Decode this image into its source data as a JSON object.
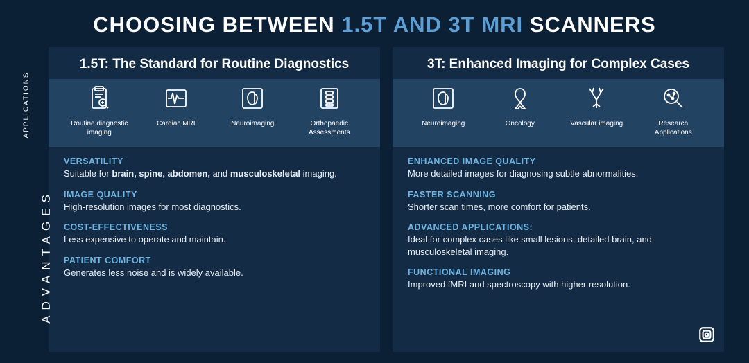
{
  "colors": {
    "background": "#0b1f35",
    "accent": "#5d9fd4",
    "adv_title": "#6fb3e0",
    "panel_bg": "rgba(45,80,120,0.25)",
    "apps_row_bg": "rgba(80,130,180,0.28)",
    "text": "#ffffff",
    "body_text": "#e8eef4"
  },
  "title": {
    "pre": "CHOOSING BETWEEN ",
    "accent": "1.5T AND 3T MRI",
    "post": " SCANNERS"
  },
  "side_labels": {
    "applications": "APPLICATIONS",
    "advantages": "ADVANTAGES"
  },
  "left": {
    "header": "1.5T: The Standard for Routine Diagnostics",
    "apps": [
      {
        "icon": "clipboard-search",
        "label": "Routine diagnostic imaging"
      },
      {
        "icon": "ecg",
        "label": "Cardiac MRI"
      },
      {
        "icon": "brain-scan",
        "label": "Neuroimaging"
      },
      {
        "icon": "spine",
        "label": "Orthopaedic Assessments"
      }
    ],
    "advantages": [
      {
        "title": "VERSATILITY",
        "html": "Suitable for <b>brain, spine, abdomen,</b> and <b>musculoskeletal</b> imaging."
      },
      {
        "title": "IMAGE QUALITY",
        "html": "High-resolution images for most diagnostics."
      },
      {
        "title": "COST-EFFECTIVENESS",
        "html": "Less expensive to operate and maintain."
      },
      {
        "title": "PATIENT COMFORT",
        "html": "Generates less noise and is widely available."
      }
    ]
  },
  "right": {
    "header": "3T: Enhanced Imaging for Complex Cases",
    "apps": [
      {
        "icon": "brain-scan",
        "label": "Neuroimaging"
      },
      {
        "icon": "ribbon",
        "label": "Oncology"
      },
      {
        "icon": "vascular",
        "label": "Vascular imaging"
      },
      {
        "icon": "research",
        "label": "Research Applications"
      }
    ],
    "advantages": [
      {
        "title": "ENHANCED IMAGE QUALITY",
        "html": "More detailed images for diagnosing subtle abnormalities."
      },
      {
        "title": "FASTER SCANNING",
        "html": "Shorter scan times, more comfort for patients."
      },
      {
        "title": "ADVANCED APPLICATIONS:",
        "html": "Ideal for complex cases like small lesions, detailed brain, and musculoskeletal imaging."
      },
      {
        "title": "FUNCTIONAL IMAGING",
        "html": "Improved fMRI and spectroscopy with higher resolution."
      }
    ]
  }
}
